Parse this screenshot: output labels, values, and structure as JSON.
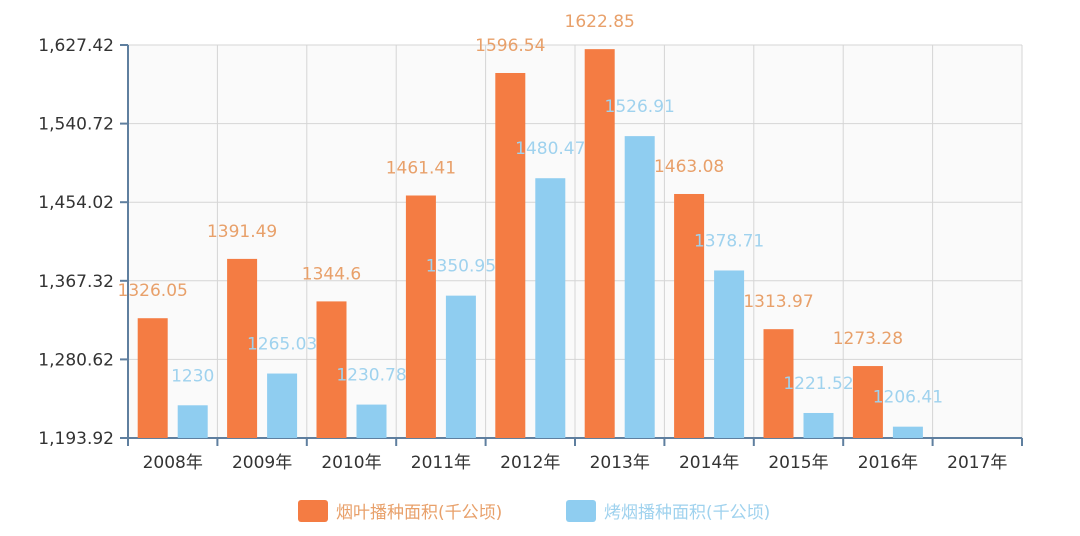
{
  "chart_data": {
    "type": "bar",
    "categories": [
      "2008年",
      "2009年",
      "2010年",
      "2011年",
      "2012年",
      "2013年",
      "2014年",
      "2015年",
      "2016年",
      "2017年"
    ],
    "series": [
      {
        "name": "烟叶播种面积(千公顷)",
        "color": "#f47c43",
        "values": [
          1326.05,
          1391.49,
          1344.6,
          1461.41,
          1596.54,
          1622.85,
          1463.08,
          1313.97,
          1273.28,
          null
        ],
        "labels": [
          "1326.05",
          "1391.49",
          "1344.6",
          "1461.41",
          "1596.54",
          "1622.85",
          "1463.08",
          "1313.97",
          "1273.28",
          null
        ]
      },
      {
        "name": "烤烟播种面积(千公顷)",
        "color": "#8fcdf0",
        "values": [
          1230,
          1265.03,
          1230.78,
          1350.95,
          1480.47,
          1526.91,
          1378.71,
          1221.52,
          1206.41,
          null
        ],
        "labels": [
          "1230",
          "1265.03",
          "1230.78",
          "1350.95",
          "1480.47",
          "1526.91",
          "1378.71",
          "1221.52",
          "1206.41",
          null
        ]
      }
    ],
    "yticks": [
      1193.92,
      1280.62,
      1367.32,
      1454.02,
      1540.72,
      1627.42
    ],
    "ytick_labels": [
      "1,193.92",
      "1,280.62",
      "1,367.32",
      "1,454.02",
      "1,540.72",
      "1,627.42"
    ],
    "ylim": [
      1193.92,
      1627.42
    ],
    "grid": true,
    "legend": "bottom",
    "axis_color": "#5f7f9f",
    "grid_color": "#d5d5d5"
  }
}
